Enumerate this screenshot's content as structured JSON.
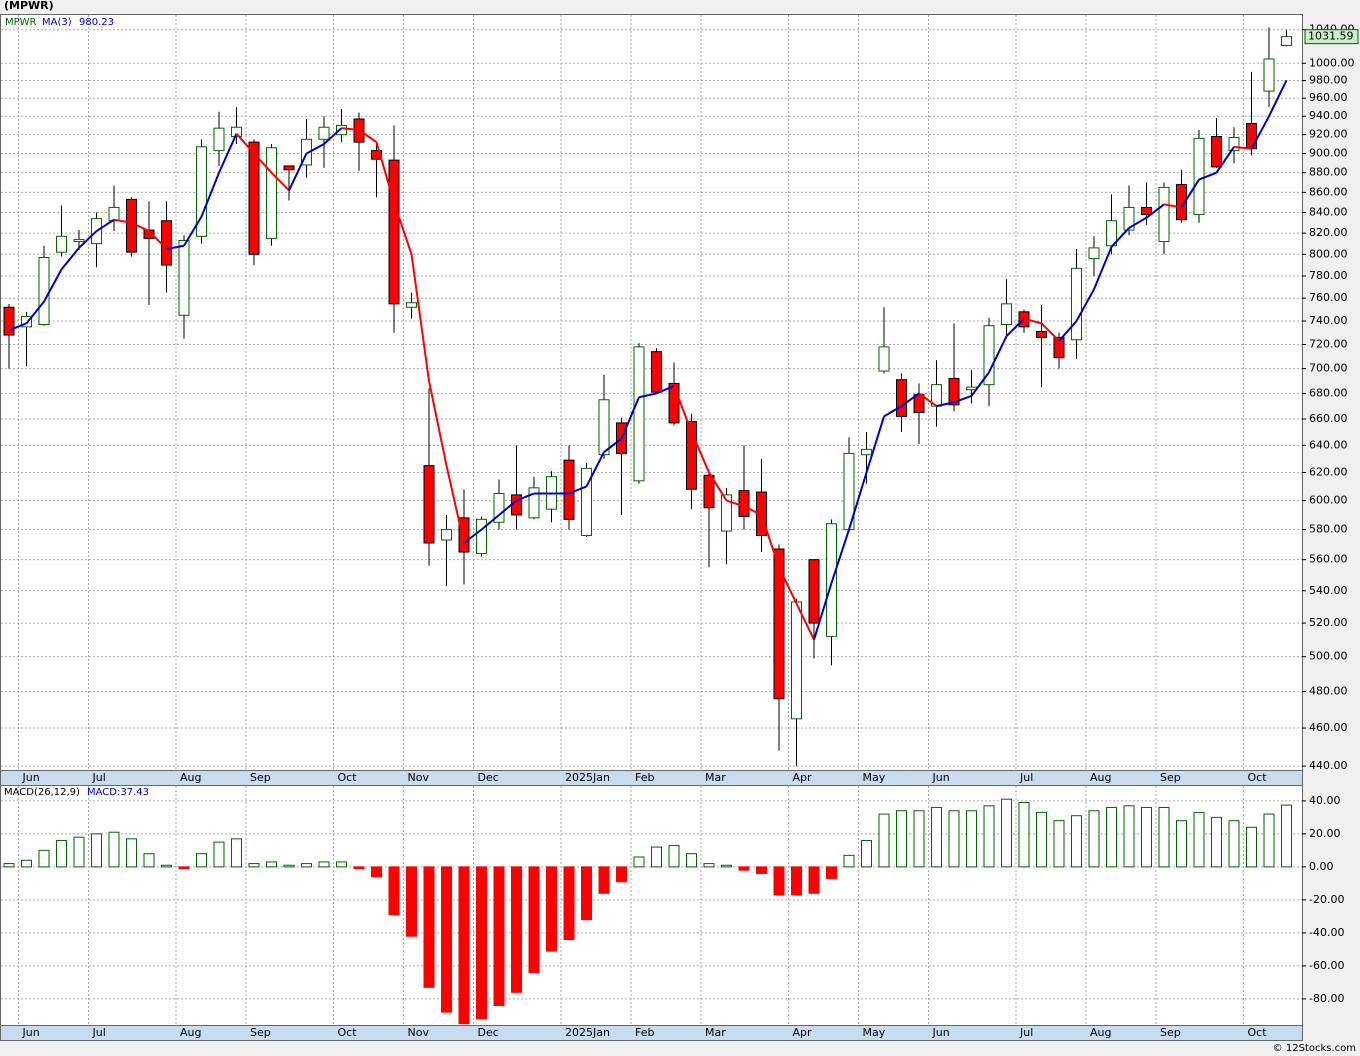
{
  "title": "(MPWR)",
  "footer": "© 12Stocks.com",
  "chart_data": [
    {
      "type": "candlestick",
      "symbol": "MPWR",
      "log_scale": true,
      "grid": true,
      "up_color": "#ffffff",
      "down_color": "#ff0000",
      "ylim": [
        438,
        1058
      ],
      "yticks": [
        {
          "value": 440,
          "label": "440.00"
        },
        {
          "value": 460,
          "label": "460.00"
        },
        {
          "value": 480,
          "label": "480.00"
        },
        {
          "value": 500,
          "label": "500.00"
        },
        {
          "value": 520,
          "label": "520.00"
        },
        {
          "value": 540,
          "label": "540.00"
        },
        {
          "value": 560,
          "label": "560.00"
        },
        {
          "value": 580,
          "label": "580.00"
        },
        {
          "value": 600,
          "label": "600.00"
        },
        {
          "value": 620,
          "label": "620.00"
        },
        {
          "value": 640,
          "label": "640.00"
        },
        {
          "value": 660,
          "label": "660.00"
        },
        {
          "value": 680,
          "label": "680.00"
        },
        {
          "value": 700,
          "label": "700.00"
        },
        {
          "value": 720,
          "label": "720.00"
        },
        {
          "value": 740,
          "label": "740.00"
        },
        {
          "value": 760,
          "label": "760.00"
        },
        {
          "value": 780,
          "label": "780.00"
        },
        {
          "value": 800,
          "label": "800.00"
        },
        {
          "value": 820,
          "label": "820.00"
        },
        {
          "value": 840,
          "label": "840.00"
        },
        {
          "value": 860,
          "label": "860.00"
        },
        {
          "value": 880,
          "label": "880.00"
        },
        {
          "value": 900,
          "label": "900.00"
        },
        {
          "value": 920,
          "label": "920.00"
        },
        {
          "value": 940,
          "label": "940.00"
        },
        {
          "value": 960,
          "label": "960.00"
        },
        {
          "value": 980,
          "label": "980.00"
        },
        {
          "value": 1000,
          "label": "1000.00"
        },
        {
          "value": 1040,
          "label": "1040.00"
        }
      ],
      "categories": [
        null,
        "Jun",
        null,
        null,
        null,
        "Jul",
        null,
        null,
        null,
        null,
        "Aug",
        null,
        null,
        null,
        "Sep",
        null,
        null,
        null,
        null,
        "Oct",
        null,
        null,
        null,
        "Nov",
        null,
        null,
        null,
        "Dec",
        null,
        null,
        null,
        null,
        "2025Jan",
        null,
        null,
        null,
        "Feb",
        null,
        null,
        null,
        "Mar",
        null,
        null,
        null,
        null,
        "Apr",
        null,
        null,
        null,
        "May",
        null,
        null,
        null,
        "Jun",
        null,
        null,
        null,
        null,
        "Jul",
        null,
        null,
        null,
        "Aug",
        null,
        null,
        null,
        "Sep",
        null,
        null,
        null,
        null,
        "Oct",
        null,
        null
      ],
      "open": [
        752,
        735,
        737,
        802,
        812,
        810,
        832,
        853,
        823,
        832,
        745,
        817,
        903,
        918,
        912,
        815,
        887,
        888,
        915,
        920,
        937,
        903,
        893,
        752,
        625,
        573,
        588,
        564,
        585,
        604,
        588,
        594,
        629,
        576,
        633,
        657,
        614,
        714,
        688,
        658,
        618,
        579,
        607,
        606,
        567,
        465,
        560,
        512,
        580,
        633,
        698,
        691,
        679,
        670,
        692,
        683,
        687,
        737,
        748,
        731,
        726,
        724,
        796,
        808,
        823,
        845,
        812,
        868,
        838,
        918,
        903,
        932,
        968,
        1021
      ],
      "high": [
        755,
        748,
        808,
        847,
        823,
        840,
        867,
        855,
        851,
        851,
        818,
        915,
        945,
        950,
        915,
        910,
        887,
        937,
        940,
        948,
        944,
        912,
        930,
        765,
        684,
        590,
        608,
        589,
        615,
        640,
        617,
        621,
        640,
        627,
        695,
        661,
        721,
        717,
        705,
        664,
        622,
        609,
        640,
        630,
        570,
        535,
        560,
        587,
        646,
        650,
        752,
        696,
        688,
        707,
        738,
        699,
        743,
        777,
        750,
        754,
        730,
        805,
        817,
        858,
        867,
        870,
        870,
        883,
        925,
        938,
        928,
        990,
        1043,
        1040
      ],
      "low": [
        700,
        702,
        736,
        798,
        804,
        788,
        822,
        798,
        754,
        765,
        725,
        810,
        887,
        910,
        790,
        808,
        852,
        875,
        885,
        912,
        882,
        855,
        730,
        742,
        556,
        543,
        544,
        562,
        580,
        580,
        587,
        585,
        580,
        575,
        630,
        590,
        612,
        680,
        655,
        594,
        555,
        557,
        580,
        565,
        448,
        440,
        499,
        495,
        578,
        612,
        696,
        650,
        641,
        654,
        666,
        672,
        670,
        725,
        730,
        685,
        700,
        708,
        780,
        800,
        818,
        828,
        800,
        830,
        830,
        885,
        890,
        898,
        950,
        1020
      ],
      "close": [
        728,
        744,
        797,
        817,
        814,
        834,
        845,
        802,
        815,
        790,
        813,
        907,
        927,
        928,
        800,
        906,
        883,
        915,
        928,
        930,
        912,
        894,
        755,
        756,
        571,
        580,
        565,
        587,
        605,
        590,
        609,
        617,
        587,
        623,
        675,
        634,
        718,
        681,
        657,
        608,
        595,
        604,
        589,
        576,
        476,
        533,
        520,
        584,
        634,
        637,
        718,
        662,
        665,
        687,
        671,
        685,
        736,
        755,
        735,
        726,
        709,
        787,
        806,
        832,
        845,
        838,
        865,
        833,
        916,
        886,
        917,
        905,
        1005,
        1031.59
      ],
      "series": [
        {
          "name": "MA(3)",
          "up_color": "#0000cc",
          "down_color": "#ff0000",
          "values": [
            732,
            738,
            757,
            786,
            806,
            822,
            833,
            830,
            822,
            805,
            808,
            836,
            880,
            921,
            900,
            880,
            862,
            900,
            910,
            927,
            925,
            912,
            850,
            800,
            690,
            625,
            571,
            580,
            590,
            600,
            605,
            605,
            605,
            610,
            635,
            645,
            677,
            680,
            686,
            650,
            620,
            600,
            596,
            590,
            555,
            532,
            510,
            545,
            580,
            620,
            662,
            670,
            680,
            670,
            673,
            678,
            697,
            727,
            742,
            738,
            723,
            740,
            768,
            807,
            825,
            835,
            848,
            845,
            873,
            880,
            907,
            905,
            940,
            980.23
          ]
        }
      ]
    },
    {
      "type": "bar",
      "name": "MACD(26,12,9)",
      "value_label": "MACD:37.43",
      "pos_color": "#006600",
      "neg_color": "#ff0000",
      "ylim": [
        -95.8,
        49
      ],
      "grid": true,
      "yticks": [
        {
          "value": 40,
          "label": "40.00"
        },
        {
          "value": 20,
          "label": "20.00"
        },
        {
          "value": 0,
          "label": "0.00"
        },
        {
          "value": -20,
          "label": "-20.00"
        },
        {
          "value": -40,
          "label": "-40.00"
        },
        {
          "value": -60,
          "label": "-60.00"
        },
        {
          "value": -80,
          "label": "-80.00"
        }
      ],
      "values": [
        2,
        4,
        10,
        16,
        18,
        20,
        21,
        17,
        8,
        1,
        -1,
        8,
        15,
        17,
        2,
        3,
        1,
        2,
        3,
        3,
        -1,
        -6,
        -29,
        -42,
        -73,
        -88,
        -95,
        -92,
        -84,
        -76,
        -64,
        -51,
        -44,
        -32,
        -16,
        -9,
        6,
        12,
        13,
        8,
        2,
        1,
        -2,
        -4,
        -17,
        -17,
        -16,
        -7,
        7,
        16,
        32,
        34,
        34,
        36,
        34,
        34,
        37,
        41,
        39,
        33,
        28,
        31,
        34,
        36,
        37,
        36,
        36,
        28,
        33,
        30,
        28,
        24,
        32,
        37.43
      ]
    }
  ]
}
